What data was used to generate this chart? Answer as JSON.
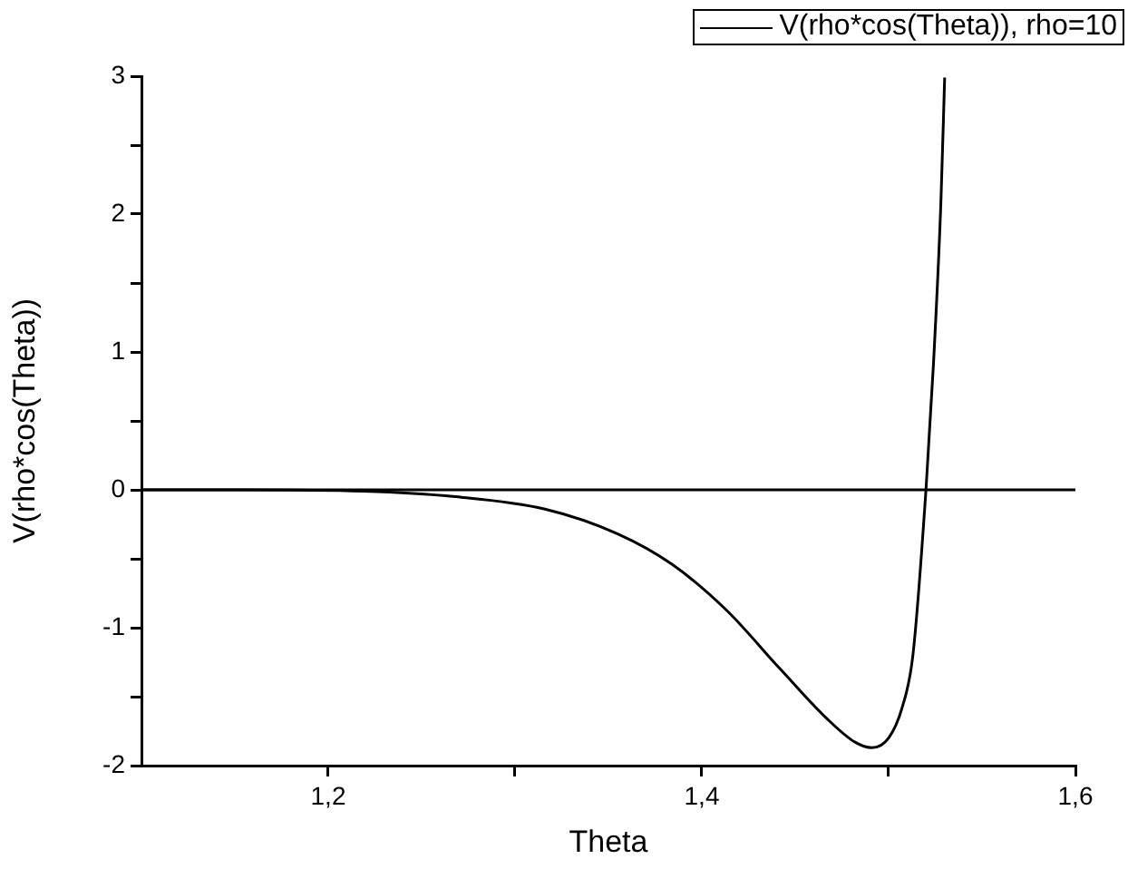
{
  "chart_data": {
    "type": "line",
    "xlabel": "Theta",
    "ylabel": "V(rho*cos(Theta))",
    "series": [
      {
        "name": "V(rho*cos(Theta)), rho=10",
        "color": "#000000",
        "x": [
          1.1,
          1.15,
          1.219,
          1.268,
          1.316,
          1.355,
          1.384,
          1.413,
          1.442,
          1.467,
          1.482,
          1.491,
          1.5,
          1.507,
          1.513,
          1.52,
          1.524,
          1.528,
          1.53
        ],
        "values": [
          0,
          0,
          -0.01,
          -0.05,
          -0.14,
          -0.32,
          -0.54,
          -0.87,
          -1.3,
          -1.66,
          -1.83,
          -1.87,
          -1.8,
          -1.59,
          -1.2,
          0,
          0.91,
          2.09,
          2.99
        ]
      }
    ],
    "xlim": [
      1.1,
      1.6
    ],
    "ylim": [
      -2,
      3
    ],
    "xticks": [
      {
        "value": 1.2,
        "label": "1,2"
      },
      {
        "value": 1.3,
        "label": null
      },
      {
        "value": 1.4,
        "label": "1,4"
      },
      {
        "value": 1.5,
        "label": null
      },
      {
        "value": 1.6,
        "label": "1,6"
      }
    ],
    "yticks": [
      -2,
      {
        "value": -1.5,
        "label": null
      },
      -1,
      {
        "value": -0.5,
        "label": null
      },
      0,
      {
        "value": 0.5,
        "label": null
      },
      1,
      {
        "value": 1.5,
        "label": null
      },
      2,
      {
        "value": 2.5,
        "label": null
      },
      3
    ],
    "ref_lines": [
      {
        "axis": "y",
        "value": 0,
        "color": "#000000"
      }
    ],
    "grid": false,
    "legend": "top right",
    "marker": "none",
    "line_style": "solid"
  }
}
